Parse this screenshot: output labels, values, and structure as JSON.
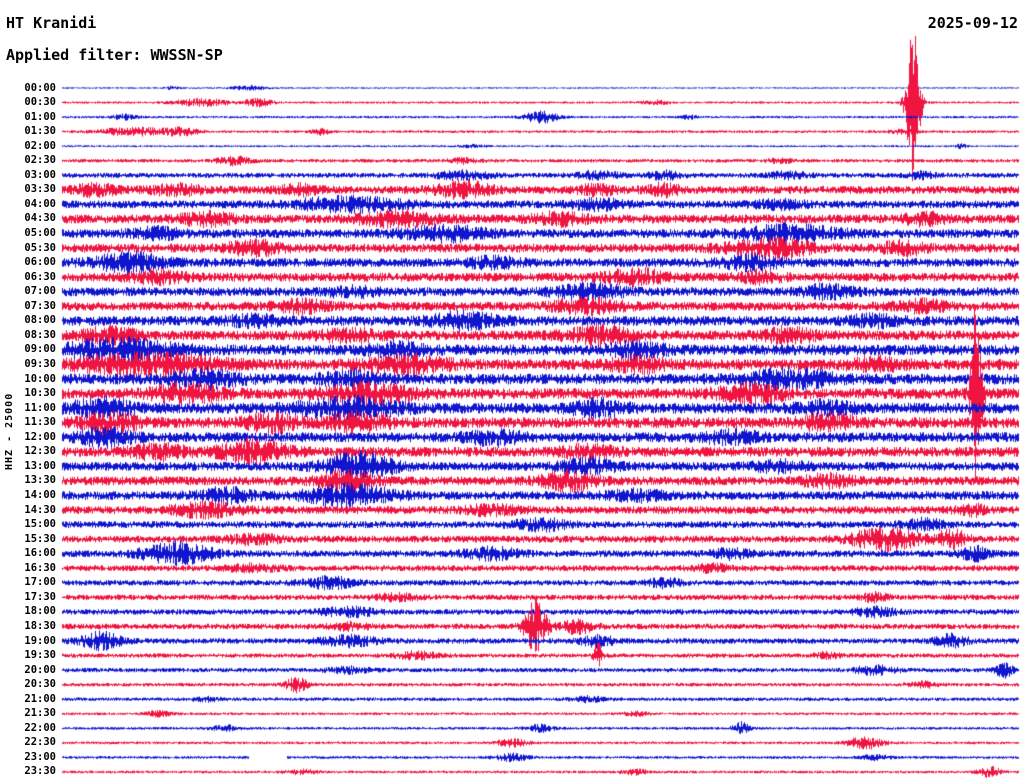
{
  "header": {
    "station": "HT Kranidi",
    "date": "2025-09-12",
    "filter_label": "Applied filter: WWSSN-SP"
  },
  "y_axis_label": "HHZ - 25000",
  "colors": {
    "blue": "#1015cf",
    "red": "#f01441",
    "background": "#ffffff",
    "text": "#000000"
  },
  "chart_data": {
    "type": "line",
    "subtype": "helicorder-seismogram",
    "title": "HT Kranidi HHZ helicorder, 2025-09-12, filter WWSSN-SP, scale 25000",
    "minutes_per_row": 30,
    "rows_count": 48,
    "legend": "alternating blue/red traces, one row per 30 minutes, amplitude in pixels (amp = background noise half-height, bursts = [position-fraction, extra-amplitude, width-fraction])",
    "rows": [
      {
        "label": "00:00",
        "color": "blue",
        "amp": 0.8,
        "bursts": [
          [
            0.195,
            2.5,
            0.012
          ],
          [
            0.115,
            1.5,
            0.006
          ]
        ]
      },
      {
        "label": "00:30",
        "color": "red",
        "amp": 1.2,
        "bursts": [
          [
            0.145,
            3.5,
            0.02
          ],
          [
            0.205,
            4,
            0.01
          ],
          [
            0.62,
            2,
            0.01
          ],
          [
            0.89,
            80,
            0.005
          ]
        ]
      },
      {
        "label": "01:00",
        "color": "blue",
        "amp": 1.2,
        "bursts": [
          [
            0.065,
            2.5,
            0.01
          ],
          [
            0.5,
            6,
            0.012
          ],
          [
            0.655,
            2,
            0.006
          ]
        ]
      },
      {
        "label": "01:30",
        "color": "red",
        "amp": 1.4,
        "bursts": [
          [
            0.075,
            4,
            0.025
          ],
          [
            0.125,
            3.5,
            0.012
          ],
          [
            0.27,
            3.5,
            0.006
          ],
          [
            0.88,
            2,
            0.01
          ]
        ]
      },
      {
        "label": "02:00",
        "color": "blue",
        "amp": 1.0,
        "bursts": [
          [
            0.43,
            1.5,
            0.01
          ],
          [
            0.94,
            2,
            0.004
          ]
        ]
      },
      {
        "label": "02:30",
        "color": "red",
        "amp": 1.8,
        "bursts": [
          [
            0.18,
            4,
            0.012
          ],
          [
            0.42,
            2.5,
            0.01
          ],
          [
            0.75,
            2,
            0.01
          ]
        ]
      },
      {
        "label": "03:00",
        "color": "blue",
        "amp": 2.5,
        "bursts": [
          [
            0.42,
            4,
            0.02
          ],
          [
            0.56,
            3.5,
            0.015
          ],
          [
            0.63,
            4,
            0.012
          ],
          [
            0.76,
            3,
            0.015
          ],
          [
            0.9,
            3,
            0.01
          ]
        ]
      },
      {
        "label": "03:30",
        "color": "red",
        "amp": 4,
        "bursts": [
          [
            0.035,
            5,
            0.015
          ],
          [
            0.12,
            4,
            0.02
          ],
          [
            0.25,
            4,
            0.015
          ],
          [
            0.42,
            7,
            0.02
          ],
          [
            0.56,
            4,
            0.015
          ],
          [
            0.63,
            5,
            0.012
          ]
        ]
      },
      {
        "label": "04:00",
        "color": "blue",
        "amp": 4,
        "bursts": [
          [
            0.3,
            6,
            0.04
          ],
          [
            0.56,
            4,
            0.02
          ],
          [
            0.75,
            3,
            0.02
          ]
        ]
      },
      {
        "label": "04:30",
        "color": "red",
        "amp": 4.5,
        "bursts": [
          [
            0.15,
            5,
            0.02
          ],
          [
            0.35,
            6,
            0.03
          ],
          [
            0.52,
            5,
            0.02
          ],
          [
            0.9,
            5,
            0.015
          ]
        ]
      },
      {
        "label": "05:00",
        "color": "blue",
        "amp": 4.5,
        "bursts": [
          [
            0.1,
            4,
            0.02
          ],
          [
            0.4,
            6,
            0.03
          ],
          [
            0.76,
            7,
            0.035
          ]
        ]
      },
      {
        "label": "05:30",
        "color": "red",
        "amp": 4.5,
        "bursts": [
          [
            0.2,
            6,
            0.02
          ],
          [
            0.74,
            8,
            0.03
          ],
          [
            0.88,
            6,
            0.015
          ]
        ]
      },
      {
        "label": "06:00",
        "color": "blue",
        "amp": 4.5,
        "bursts": [
          [
            0.07,
            8,
            0.025
          ],
          [
            0.45,
            4,
            0.02
          ],
          [
            0.72,
            6,
            0.02
          ]
        ]
      },
      {
        "label": "06:30",
        "color": "red",
        "amp": 4.5,
        "bursts": [
          [
            0.1,
            5,
            0.02
          ],
          [
            0.6,
            6,
            0.025
          ],
          [
            0.73,
            5,
            0.015
          ]
        ]
      },
      {
        "label": "07:00",
        "color": "blue",
        "amp": 4.5,
        "bursts": [
          [
            0.3,
            4,
            0.02
          ],
          [
            0.55,
            6,
            0.025
          ],
          [
            0.8,
            5,
            0.02
          ]
        ]
      },
      {
        "label": "07:30",
        "color": "red",
        "amp": 4.5,
        "bursts": [
          [
            0.25,
            5,
            0.02
          ],
          [
            0.55,
            6,
            0.025
          ],
          [
            0.9,
            5,
            0.02
          ]
        ]
      },
      {
        "label": "08:00",
        "color": "blue",
        "amp": 5,
        "bursts": [
          [
            0.2,
            4,
            0.02
          ],
          [
            0.42,
            6,
            0.025
          ],
          [
            0.85,
            4,
            0.02
          ]
        ]
      },
      {
        "label": "08:30",
        "color": "red",
        "amp": 5,
        "bursts": [
          [
            0.05,
            6,
            0.02
          ],
          [
            0.3,
            5,
            0.02
          ],
          [
            0.56,
            7,
            0.025
          ],
          [
            0.76,
            6,
            0.02
          ]
        ]
      },
      {
        "label": "09:00",
        "color": "blue",
        "amp": 5.5,
        "bursts": [
          [
            0.06,
            9,
            0.04
          ],
          [
            0.35,
            5,
            0.02
          ],
          [
            0.6,
            6,
            0.02
          ]
        ]
      },
      {
        "label": "09:30",
        "color": "red",
        "amp": 5.5,
        "bursts": [
          [
            0.09,
            9,
            0.05
          ],
          [
            0.36,
            7,
            0.03
          ],
          [
            0.6,
            6,
            0.02
          ],
          [
            0.85,
            5,
            0.02
          ]
        ]
      },
      {
        "label": "10:00",
        "color": "blue",
        "amp": 5.5,
        "bursts": [
          [
            0.15,
            7,
            0.025
          ],
          [
            0.3,
            6,
            0.02
          ],
          [
            0.76,
            8,
            0.03
          ]
        ]
      },
      {
        "label": "10:30",
        "color": "red",
        "amp": 5.5,
        "bursts": [
          [
            0.13,
            7,
            0.025
          ],
          [
            0.32,
            8,
            0.03
          ],
          [
            0.72,
            7,
            0.025
          ],
          [
            0.956,
            95,
            0.004
          ]
        ]
      },
      {
        "label": "11:00",
        "color": "blue",
        "amp": 5.5,
        "bursts": [
          [
            0.04,
            8,
            0.02
          ],
          [
            0.3,
            9,
            0.035
          ],
          [
            0.56,
            6,
            0.02
          ],
          [
            0.8,
            5,
            0.02
          ]
        ]
      },
      {
        "label": "11:30",
        "color": "red",
        "amp": 5.5,
        "bursts": [
          [
            0.05,
            7,
            0.02
          ],
          [
            0.22,
            7,
            0.02
          ],
          [
            0.31,
            8,
            0.02
          ],
          [
            0.8,
            6,
            0.02
          ]
        ]
      },
      {
        "label": "12:00",
        "color": "blue",
        "amp": 5,
        "bursts": [
          [
            0.045,
            7,
            0.02
          ],
          [
            0.45,
            6,
            0.02
          ],
          [
            0.7,
            5,
            0.02
          ]
        ]
      },
      {
        "label": "12:30",
        "color": "red",
        "amp": 5,
        "bursts": [
          [
            0.1,
            6,
            0.02
          ],
          [
            0.2,
            10,
            0.025
          ],
          [
            0.55,
            5,
            0.02
          ]
        ]
      },
      {
        "label": "13:00",
        "color": "blue",
        "amp": 4.5,
        "bursts": [
          [
            0.31,
            12,
            0.025
          ],
          [
            0.55,
            6,
            0.02
          ],
          [
            0.75,
            4,
            0.02
          ]
        ]
      },
      {
        "label": "13:30",
        "color": "red",
        "amp": 4.5,
        "bursts": [
          [
            0.3,
            8,
            0.02
          ],
          [
            0.53,
            8,
            0.02
          ],
          [
            0.8,
            5,
            0.02
          ]
        ]
      },
      {
        "label": "14:00",
        "color": "blue",
        "amp": 4.5,
        "bursts": [
          [
            0.17,
            6,
            0.02
          ],
          [
            0.3,
            10,
            0.03
          ],
          [
            0.6,
            4,
            0.02
          ]
        ]
      },
      {
        "label": "14:30",
        "color": "red",
        "amp": 4,
        "bursts": [
          [
            0.15,
            6,
            0.025
          ],
          [
            0.45,
            4,
            0.02
          ],
          [
            0.95,
            5,
            0.01
          ]
        ]
      },
      {
        "label": "15:00",
        "color": "blue",
        "amp": 3.5,
        "bursts": [
          [
            0.5,
            5,
            0.02
          ],
          [
            0.9,
            5,
            0.015
          ]
        ]
      },
      {
        "label": "15:30",
        "color": "red",
        "amp": 3.5,
        "bursts": [
          [
            0.2,
            4,
            0.02
          ],
          [
            0.86,
            10,
            0.025
          ],
          [
            0.93,
            8,
            0.012
          ]
        ]
      },
      {
        "label": "16:00",
        "color": "blue",
        "amp": 3.5,
        "bursts": [
          [
            0.12,
            10,
            0.025
          ],
          [
            0.45,
            5,
            0.02
          ],
          [
            0.7,
            4,
            0.015
          ],
          [
            0.955,
            6,
            0.01
          ]
        ]
      },
      {
        "label": "16:30",
        "color": "red",
        "amp": 3,
        "bursts": [
          [
            0.2,
            3,
            0.02
          ],
          [
            0.68,
            3,
            0.015
          ]
        ]
      },
      {
        "label": "17:00",
        "color": "blue",
        "amp": 2.8,
        "bursts": [
          [
            0.28,
            5,
            0.02
          ],
          [
            0.63,
            4,
            0.012
          ]
        ]
      },
      {
        "label": "17:30",
        "color": "red",
        "amp": 2.8,
        "bursts": [
          [
            0.35,
            3,
            0.015
          ],
          [
            0.85,
            4,
            0.01
          ]
        ]
      },
      {
        "label": "18:00",
        "color": "blue",
        "amp": 2.8,
        "bursts": [
          [
            0.3,
            4,
            0.02
          ],
          [
            0.85,
            4,
            0.015
          ]
        ]
      },
      {
        "label": "18:30",
        "color": "red",
        "amp": 2.8,
        "bursts": [
          [
            0.3,
            3,
            0.015
          ],
          [
            0.495,
            26,
            0.008
          ],
          [
            0.54,
            7,
            0.012
          ]
        ]
      },
      {
        "label": "19:00",
        "color": "blue",
        "amp": 2.8,
        "bursts": [
          [
            0.04,
            8,
            0.015
          ],
          [
            0.3,
            5,
            0.02
          ],
          [
            0.56,
            5,
            0.012
          ],
          [
            0.93,
            6,
            0.012
          ]
        ]
      },
      {
        "label": "19:30",
        "color": "red",
        "amp": 2.2,
        "bursts": [
          [
            0.37,
            3.5,
            0.015
          ],
          [
            0.56,
            13,
            0.003
          ],
          [
            0.8,
            3,
            0.01
          ]
        ]
      },
      {
        "label": "20:00",
        "color": "blue",
        "amp": 2.2,
        "bursts": [
          [
            0.3,
            3,
            0.015
          ],
          [
            0.85,
            4,
            0.015
          ],
          [
            0.985,
            7,
            0.006
          ]
        ]
      },
      {
        "label": "20:30",
        "color": "red",
        "amp": 1.8,
        "bursts": [
          [
            0.245,
            7,
            0.008
          ],
          [
            0.9,
            3,
            0.01
          ]
        ]
      },
      {
        "label": "21:00",
        "color": "blue",
        "amp": 1.8,
        "bursts": [
          [
            0.15,
            2,
            0.01
          ],
          [
            0.55,
            2.5,
            0.012
          ]
        ]
      },
      {
        "label": "21:30",
        "color": "red",
        "amp": 1.4,
        "bursts": [
          [
            0.1,
            2.5,
            0.01
          ],
          [
            0.6,
            2,
            0.01
          ]
        ]
      },
      {
        "label": "22:00",
        "color": "blue",
        "amp": 1.4,
        "bursts": [
          [
            0.17,
            3,
            0.01
          ],
          [
            0.5,
            3.5,
            0.01
          ],
          [
            0.71,
            6,
            0.006
          ]
        ]
      },
      {
        "label": "22:30",
        "color": "red",
        "amp": 1.4,
        "bursts": [
          [
            0.47,
            3.5,
            0.012
          ],
          [
            0.84,
            7,
            0.012
          ]
        ]
      },
      {
        "label": "23:00",
        "color": "blue",
        "amp": 1.4,
        "bursts": [
          [
            0.47,
            3.5,
            0.012
          ],
          [
            0.85,
            2.5,
            0.01
          ]
        ],
        "gaps": [
          [
            0.195,
            0.235
          ]
        ]
      },
      {
        "label": "23:30",
        "color": "red",
        "amp": 1.4,
        "bursts": [
          [
            0.25,
            2.5,
            0.01
          ],
          [
            0.6,
            2.5,
            0.01
          ],
          [
            0.97,
            5,
            0.008
          ]
        ]
      }
    ]
  }
}
